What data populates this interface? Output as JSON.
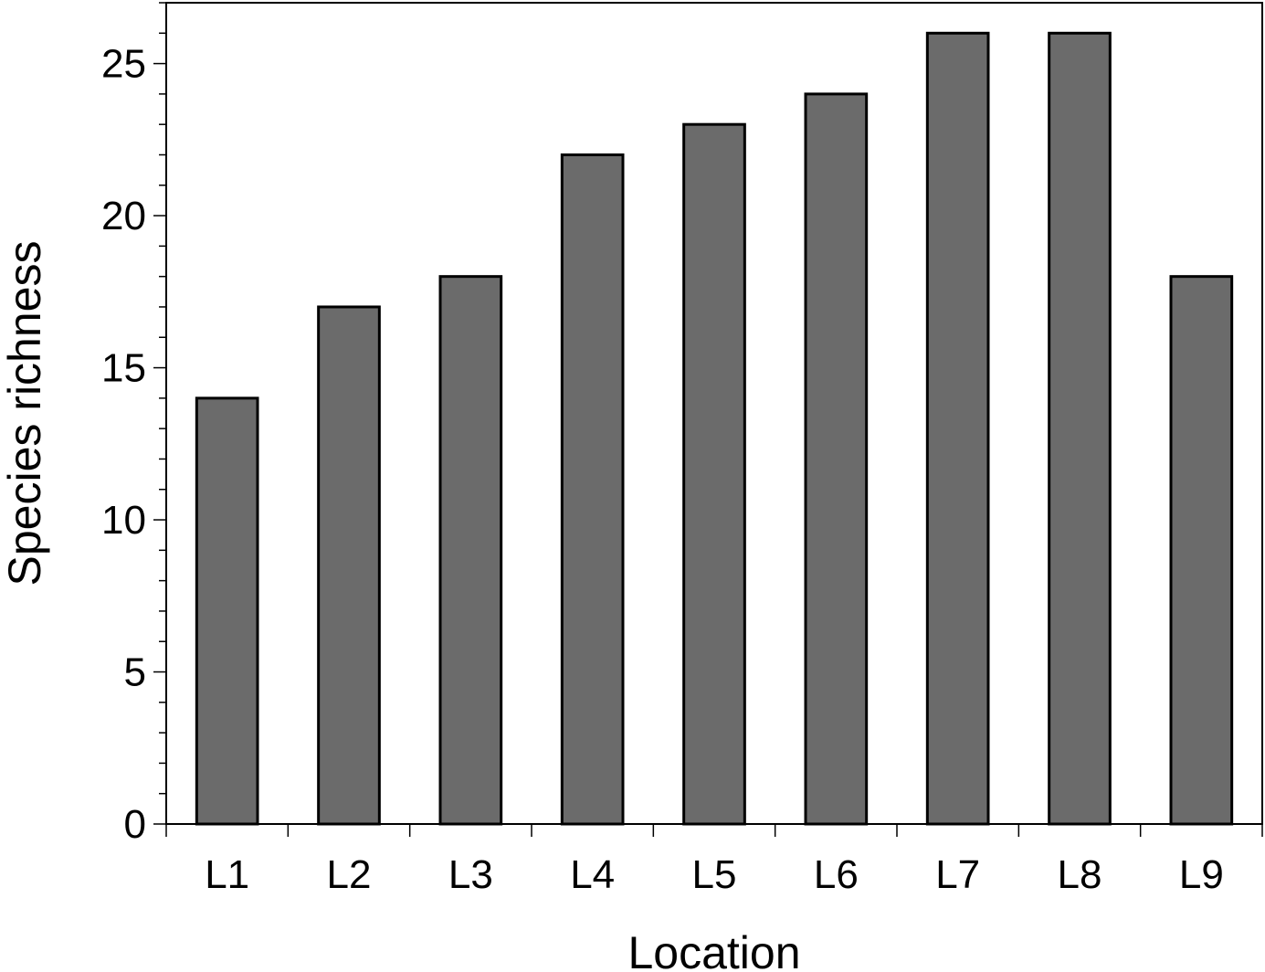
{
  "chart_data": {
    "type": "bar",
    "title": "",
    "xlabel": "Location",
    "ylabel": "Species richness",
    "categories": [
      "L1",
      "L2",
      "L3",
      "L4",
      "L5",
      "L6",
      "L7",
      "L8",
      "L9"
    ],
    "values": [
      14,
      17,
      18,
      22,
      23,
      24,
      26,
      26,
      18
    ],
    "ylim": [
      0,
      27
    ],
    "yticks": [
      0,
      5,
      10,
      15,
      20,
      25
    ],
    "y_minor_step": 1,
    "grid": false,
    "legend": "none",
    "colors": {
      "bar_fill": "#6b6b6b",
      "bar_edge": "#000000",
      "axis": "#000000"
    }
  }
}
